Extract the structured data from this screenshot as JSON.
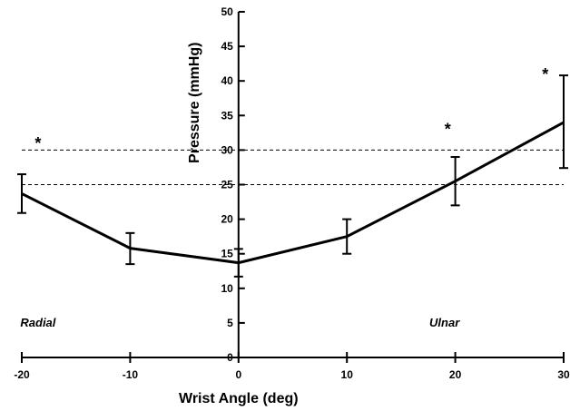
{
  "chart_data": {
    "type": "line",
    "xlabel": "Wrist Angle (deg)",
    "ylabel": "Pressure (mmHg)",
    "xlim": [
      -20,
      30
    ],
    "ylim": [
      0,
      50
    ],
    "xticks": [
      -20,
      -10,
      0,
      10,
      20,
      30
    ],
    "yticks": [
      0,
      5,
      10,
      15,
      20,
      25,
      30,
      35,
      40,
      45,
      50
    ],
    "grid": false,
    "series": [
      {
        "x": [
          -20,
          -10,
          0,
          10,
          20,
          30
        ],
        "y": [
          23.7,
          15.8,
          13.7,
          17.5,
          25.5,
          34
        ],
        "error_low": [
          20.9,
          13.5,
          11.7,
          15,
          22,
          27.4
        ],
        "error_high": [
          26.5,
          18,
          15.7,
          20,
          29,
          40.8
        ]
      }
    ],
    "reference_lines": [
      {
        "y": 30,
        "style": "dashed"
      },
      {
        "y": 25,
        "style": "dashed"
      }
    ],
    "annotations": [
      {
        "text": "*",
        "x": -18.5,
        "y": 31.5
      },
      {
        "text": "*",
        "x": 19.3,
        "y": 33.5
      },
      {
        "text": "*",
        "x": 28.3,
        "y": 41.5
      },
      {
        "text": "Radial",
        "x": -18.5,
        "y": 5
      },
      {
        "text": "Ulnar",
        "x": 19,
        "y": 5
      }
    ]
  }
}
